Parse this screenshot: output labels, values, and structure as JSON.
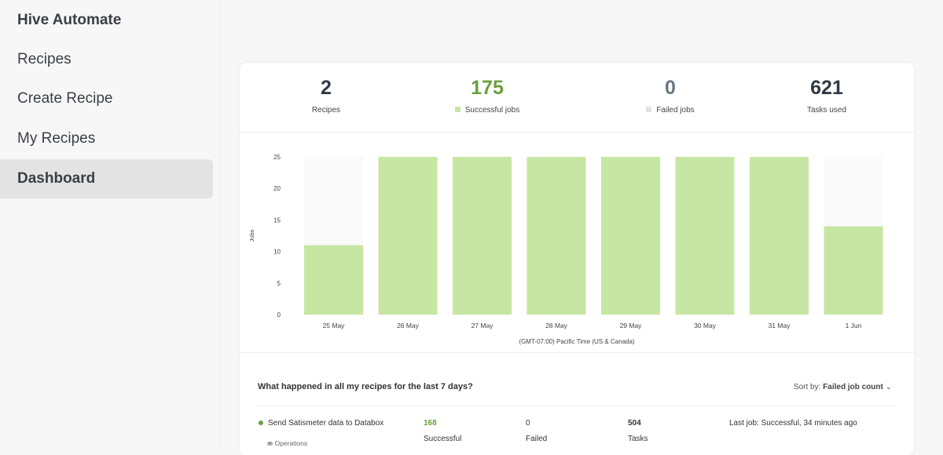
{
  "sidebar": {
    "app_title": "Hive Automate",
    "items": [
      {
        "label": "Recipes"
      },
      {
        "label": "Create Recipe"
      },
      {
        "label": "My Recipes"
      },
      {
        "label": "Dashboard",
        "active": true
      }
    ]
  },
  "stats": [
    {
      "value": "2",
      "label": "Recipes"
    },
    {
      "value": "175",
      "label": "Successful jobs",
      "color": "#6a9f3b",
      "swatch": "#c8e6a3"
    },
    {
      "value": "0",
      "label": "Failed jobs",
      "color": "#6b7680",
      "swatch": "#e2e2e2"
    },
    {
      "value": "621",
      "label": "Tasks used"
    }
  ],
  "chart_data": {
    "type": "bar",
    "categories": [
      "25 May",
      "26 May",
      "27 May",
      "28 May",
      "29 May",
      "30 May",
      "31 May",
      "1 Jun"
    ],
    "values": [
      11,
      25,
      25,
      25,
      25,
      25,
      25,
      14
    ],
    "ylabel": "Jobs",
    "xlabel": "(GMT-07:00) Pacific Time (US & Canada)",
    "ylim": [
      0,
      25
    ],
    "yticks": [
      0,
      5,
      10,
      15,
      20,
      25
    ],
    "bar_color": "#c8e6a3",
    "grid": false
  },
  "activity": {
    "title": "What happened in all my recipes for the last 7 days?",
    "sort_label": "Sort by:",
    "sort_value": "Failed job count",
    "rows": [
      {
        "name": "Send Satismeter data to Databox",
        "folder": "Operations",
        "successful": "168",
        "successful_label": "Successful",
        "failed": "0",
        "failed_label": "Failed",
        "tasks": "504",
        "tasks_label": "Tasks",
        "last_job": "Last job: Successful, 34 minutes ago"
      }
    ]
  }
}
